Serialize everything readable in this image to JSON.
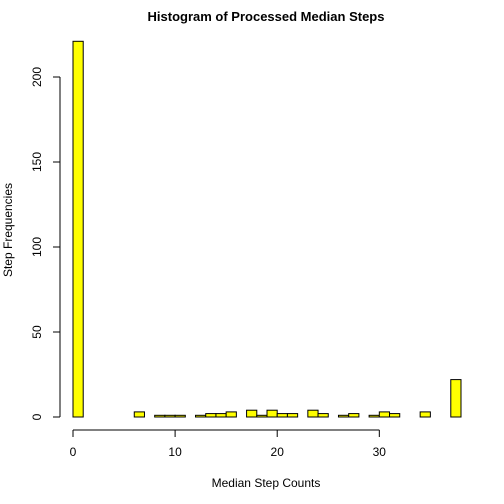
{
  "chart_data": {
    "type": "bar",
    "title": "Histogram of Processed Median Steps",
    "xlabel": "Median Step Counts",
    "ylabel": "Step Frequencies",
    "bar_color": "#FFFF00",
    "bar_border_color": "#000000",
    "xlim": [
      0,
      38
    ],
    "ylim": [
      0,
      220
    ],
    "xticks": [
      0,
      10,
      20,
      30
    ],
    "yticks": [
      0,
      50,
      100,
      150,
      200
    ],
    "bin_width": 1,
    "bins": [
      {
        "start": 0,
        "count": 221
      },
      {
        "start": 1,
        "count": 0
      },
      {
        "start": 2,
        "count": 0
      },
      {
        "start": 3,
        "count": 0
      },
      {
        "start": 4,
        "count": 0
      },
      {
        "start": 5,
        "count": 0
      },
      {
        "start": 6,
        "count": 3
      },
      {
        "start": 7,
        "count": 0
      },
      {
        "start": 8,
        "count": 1
      },
      {
        "start": 9,
        "count": 1
      },
      {
        "start": 10,
        "count": 1
      },
      {
        "start": 11,
        "count": 0
      },
      {
        "start": 12,
        "count": 1
      },
      {
        "start": 13,
        "count": 2
      },
      {
        "start": 14,
        "count": 2
      },
      {
        "start": 15,
        "count": 3
      },
      {
        "start": 16,
        "count": 0
      },
      {
        "start": 17,
        "count": 4
      },
      {
        "start": 18,
        "count": 1
      },
      {
        "start": 19,
        "count": 4
      },
      {
        "start": 20,
        "count": 2
      },
      {
        "start": 21,
        "count": 2
      },
      {
        "start": 22,
        "count": 0
      },
      {
        "start": 23,
        "count": 4
      },
      {
        "start": 24,
        "count": 2
      },
      {
        "start": 25,
        "count": 0
      },
      {
        "start": 26,
        "count": 1
      },
      {
        "start": 27,
        "count": 2
      },
      {
        "start": 28,
        "count": 0
      },
      {
        "start": 29,
        "count": 1
      },
      {
        "start": 30,
        "count": 3
      },
      {
        "start": 31,
        "count": 2
      },
      {
        "start": 32,
        "count": 0
      },
      {
        "start": 33,
        "count": 0
      },
      {
        "start": 34,
        "count": 3
      },
      {
        "start": 35,
        "count": 0
      },
      {
        "start": 36,
        "count": 0
      },
      {
        "start": 37,
        "count": 22
      }
    ]
  }
}
